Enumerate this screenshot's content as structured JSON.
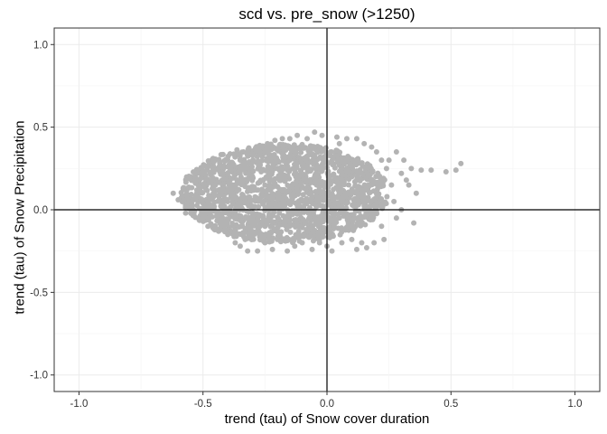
{
  "chart_data": {
    "type": "scatter",
    "title": "scd vs. pre_snow (>1250)",
    "xlabel": "trend (tau) of Snow cover duration",
    "ylabel": "trend (tau) of Snow Precipitation",
    "xlim": [
      -1.1,
      1.1
    ],
    "ylim": [
      -1.1,
      1.1
    ],
    "xticks": [
      -1.0,
      -0.5,
      0.0,
      0.5,
      1.0
    ],
    "xtick_labels": [
      "-1.0",
      "-0.5",
      "0.0",
      "0.5",
      "1.0"
    ],
    "yticks": [
      -1.0,
      -0.5,
      0.0,
      0.5,
      1.0
    ],
    "ytick_labels": [
      "-1.0",
      "-0.5",
      "0.0",
      "0.5",
      "1.0"
    ],
    "grid": true,
    "reference_lines": {
      "x": 0,
      "y": 0
    },
    "point_color": "#b3b3b3",
    "series": [
      {
        "points": [
          [
            -0.62,
            0.1
          ],
          [
            -0.6,
            0.06
          ],
          [
            -0.58,
            0.13
          ],
          [
            -0.57,
            -0.02
          ],
          [
            -0.55,
            0.2
          ],
          [
            -0.52,
            0.18
          ],
          [
            -0.5,
            0.23
          ],
          [
            -0.5,
            -0.05
          ],
          [
            -0.48,
            -0.1
          ],
          [
            -0.46,
            0.25
          ],
          [
            -0.44,
            -0.12
          ],
          [
            -0.42,
            0.22
          ],
          [
            -0.4,
            -0.15
          ],
          [
            -0.4,
            0.26
          ],
          [
            -0.37,
            -0.2
          ],
          [
            -0.35,
            -0.22
          ],
          [
            -0.35,
            0.3
          ],
          [
            -0.33,
            -0.18
          ],
          [
            -0.32,
            -0.25
          ],
          [
            -0.3,
            0.33
          ],
          [
            -0.28,
            -0.25
          ],
          [
            -0.27,
            0.35
          ],
          [
            -0.25,
            -0.2
          ],
          [
            -0.24,
            0.4
          ],
          [
            -0.22,
            -0.24
          ],
          [
            -0.21,
            0.42
          ],
          [
            -0.2,
            -0.18
          ],
          [
            -0.18,
            0.43
          ],
          [
            -0.16,
            -0.25
          ],
          [
            -0.15,
            0.43
          ],
          [
            -0.13,
            -0.22
          ],
          [
            -0.12,
            0.45
          ],
          [
            -0.1,
            -0.2
          ],
          [
            -0.08,
            0.43
          ],
          [
            -0.06,
            -0.24
          ],
          [
            -0.05,
            0.47
          ],
          [
            -0.03,
            -0.2
          ],
          [
            -0.02,
            0.45
          ],
          [
            0.0,
            -0.22
          ],
          [
            0.02,
            -0.25
          ],
          [
            0.04,
            0.44
          ],
          [
            0.06,
            -0.2
          ],
          [
            0.08,
            0.43
          ],
          [
            0.1,
            -0.18
          ],
          [
            0.12,
            0.43
          ],
          [
            0.14,
            -0.2
          ],
          [
            0.15,
            0.4
          ],
          [
            0.16,
            -0.23
          ],
          [
            0.18,
            0.38
          ],
          [
            0.19,
            -0.2
          ],
          [
            0.2,
            0.35
          ],
          [
            0.22,
            0.3
          ],
          [
            0.22,
            -0.1
          ],
          [
            0.24,
            0.25
          ],
          [
            0.25,
            0.3
          ],
          [
            0.26,
            0.15
          ],
          [
            0.27,
            0.05
          ],
          [
            0.28,
            -0.05
          ],
          [
            0.3,
            0.22
          ],
          [
            0.3,
            0.0
          ],
          [
            0.32,
            0.18
          ],
          [
            0.33,
            0.15
          ],
          [
            0.35,
            -0.08
          ],
          [
            0.38,
            0.24
          ],
          [
            0.42,
            0.24
          ],
          [
            0.48,
            0.23
          ],
          [
            0.52,
            0.24
          ],
          [
            0.54,
            0.28
          ],
          [
            0.36,
            0.1
          ],
          [
            0.34,
            0.25
          ],
          [
            0.28,
            0.35
          ],
          [
            0.31,
            0.3
          ],
          [
            0.23,
            -0.18
          ],
          [
            0.12,
            -0.24
          ],
          [
            -0.45,
            0.15
          ],
          [
            -0.55,
            0.0
          ],
          [
            -0.53,
            0.16
          ],
          [
            -0.1,
            0.38
          ],
          [
            0.05,
            0.4
          ],
          [
            -0.35,
            0.25
          ],
          [
            -0.42,
            0.05
          ],
          [
            -0.3,
            0.2
          ],
          [
            -0.25,
            0.15
          ],
          [
            -0.2,
            0.1
          ],
          [
            -0.15,
            0.3
          ],
          [
            -0.1,
            0.05
          ],
          [
            -0.05,
            0.2
          ],
          [
            0.0,
            0.1
          ],
          [
            0.05,
            0.15
          ],
          [
            0.1,
            0.2
          ],
          [
            0.15,
            0.05
          ],
          [
            0.2,
            0.1
          ],
          [
            -0.35,
            0.0
          ],
          [
            -0.3,
            -0.05
          ],
          [
            -0.25,
            -0.1
          ],
          [
            -0.15,
            -0.1
          ],
          [
            -0.05,
            -0.05
          ],
          [
            0.05,
            -0.05
          ],
          [
            0.1,
            -0.1
          ],
          [
            0.18,
            -0.05
          ]
        ]
      }
    ]
  }
}
